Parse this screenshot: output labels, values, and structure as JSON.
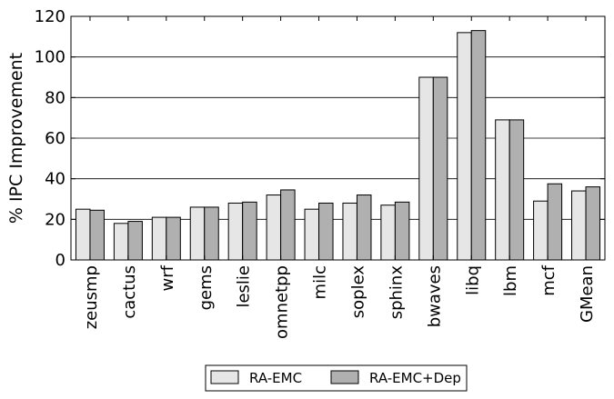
{
  "chart_data": {
    "type": "bar",
    "categories": [
      "zeusmp",
      "cactus",
      "wrf",
      "gems",
      "leslie",
      "omnetpp",
      "milc",
      "soplex",
      "sphinx",
      "bwaves",
      "libq",
      "lbm",
      "mcf",
      "GMean"
    ],
    "series": [
      {
        "name": "RA-EMC",
        "color": "#e6e6e6",
        "values": [
          25,
          18,
          21,
          26,
          28,
          32,
          25,
          28,
          27,
          90,
          112,
          69,
          29,
          34
        ]
      },
      {
        "name": "RA-EMC+Dep",
        "color": "#b0b0b0",
        "values": [
          24.5,
          19,
          21,
          26,
          28.5,
          34.5,
          28,
          32,
          28.5,
          90,
          113,
          69,
          37.5,
          36
        ]
      }
    ],
    "xlabel": "",
    "ylabel": "% IPC Improvement",
    "ylim": [
      0,
      120
    ],
    "yticks": [
      "0",
      "20",
      "40",
      "60",
      "80",
      "100",
      "120"
    ],
    "grid": "horizontal",
    "legend_position": "bottom"
  }
}
